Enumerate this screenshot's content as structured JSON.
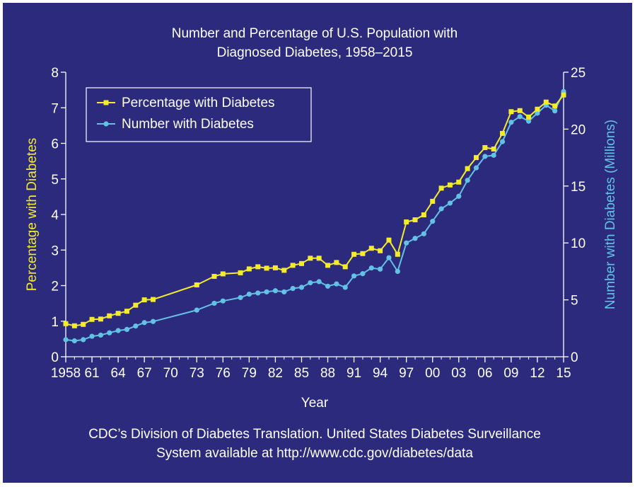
{
  "chart_data": {
    "type": "line",
    "title_lines": [
      "Number and Percentage of U.S. Population with",
      "Diagnosed Diabetes, 1958–2015"
    ],
    "xlabel": "Year",
    "ylabel_left": "Percentage with Diabetes",
    "ylabel_right": "Number with Diabetes (Millions)",
    "x_tick_labels": [
      "1958",
      "61",
      "64",
      "67",
      "70",
      "73",
      "76",
      "79",
      "82",
      "85",
      "88",
      "91",
      "94",
      "97",
      "00",
      "03",
      "06",
      "09",
      "12",
      "15"
    ],
    "x_tick_years": [
      1958,
      1961,
      1964,
      1967,
      1970,
      1973,
      1976,
      1979,
      1982,
      1985,
      1988,
      1991,
      1994,
      1997,
      2000,
      2003,
      2006,
      2009,
      2012,
      2015
    ],
    "xlim": [
      1958,
      2015
    ],
    "ylim_left": [
      0,
      8
    ],
    "ylim_right": [
      0,
      25
    ],
    "y_ticks_left": [
      "0",
      "1",
      "2",
      "3",
      "4",
      "5",
      "6",
      "7",
      "8"
    ],
    "y_ticks_right": [
      "0",
      "5",
      "10",
      "15",
      "20",
      "25"
    ],
    "legend_position": "top-left",
    "colors": {
      "background": "#2b2a7c",
      "percentage": "#f4ec2a",
      "number": "#63c2e4",
      "text": "#ffffff"
    },
    "series": [
      {
        "name": "Percentage with Diabetes",
        "axis": "left",
        "x": [
          1958,
          1959,
          1960,
          1961,
          1962,
          1963,
          1964,
          1965,
          1966,
          1967,
          1968,
          1973,
          1975,
          1976,
          1978,
          1979,
          1980,
          1981,
          1982,
          1983,
          1984,
          1985,
          1986,
          1987,
          1988,
          1989,
          1990,
          1991,
          1992,
          1993,
          1994,
          1995,
          1996,
          1997,
          1998,
          1999,
          2000,
          2001,
          2002,
          2003,
          2004,
          2005,
          2006,
          2007,
          2008,
          2009,
          2010,
          2011,
          2012,
          2013,
          2014,
          2015
        ],
        "values": [
          0.93,
          0.87,
          0.91,
          1.05,
          1.06,
          1.15,
          1.22,
          1.28,
          1.45,
          1.6,
          1.61,
          2.02,
          2.26,
          2.33,
          2.36,
          2.47,
          2.53,
          2.49,
          2.5,
          2.43,
          2.57,
          2.62,
          2.77,
          2.77,
          2.57,
          2.65,
          2.53,
          2.88,
          2.9,
          3.05,
          2.98,
          3.28,
          2.88,
          3.79,
          3.85,
          3.99,
          4.37,
          4.74,
          4.83,
          4.91,
          5.29,
          5.6,
          5.88,
          5.84,
          6.28,
          6.89,
          6.92,
          6.74,
          6.96,
          7.16,
          7.05,
          7.36
        ]
      },
      {
        "name": "Number with Diabetes",
        "axis": "right",
        "x": [
          1958,
          1959,
          1960,
          1961,
          1962,
          1963,
          1964,
          1965,
          1966,
          1967,
          1968,
          1973,
          1975,
          1976,
          1978,
          1979,
          1980,
          1981,
          1982,
          1983,
          1984,
          1985,
          1986,
          1987,
          1988,
          1989,
          1990,
          1991,
          1992,
          1993,
          1994,
          1995,
          1996,
          1997,
          1998,
          1999,
          2000,
          2001,
          2002,
          2003,
          2004,
          2005,
          2006,
          2007,
          2008,
          2009,
          2010,
          2011,
          2012,
          2013,
          2014,
          2015
        ],
        "values": [
          1.5,
          1.4,
          1.5,
          1.8,
          1.9,
          2.1,
          2.3,
          2.4,
          2.7,
          3.0,
          3.1,
          4.1,
          4.7,
          4.9,
          5.2,
          5.5,
          5.6,
          5.7,
          5.8,
          5.7,
          6.0,
          6.1,
          6.5,
          6.6,
          6.2,
          6.4,
          6.1,
          7.1,
          7.3,
          7.8,
          7.7,
          8.7,
          7.5,
          10.0,
          10.4,
          10.8,
          11.9,
          13.0,
          13.5,
          14.1,
          15.5,
          16.6,
          17.6,
          17.7,
          18.9,
          20.6,
          21.1,
          20.7,
          21.4,
          22.1,
          21.6,
          23.3
        ]
      }
    ]
  },
  "footer": {
    "line1": "CDC’s Division of Diabetes Translation. United States Diabetes Surveillance",
    "line2": "System available at http://www.cdc.gov/diabetes/data"
  }
}
